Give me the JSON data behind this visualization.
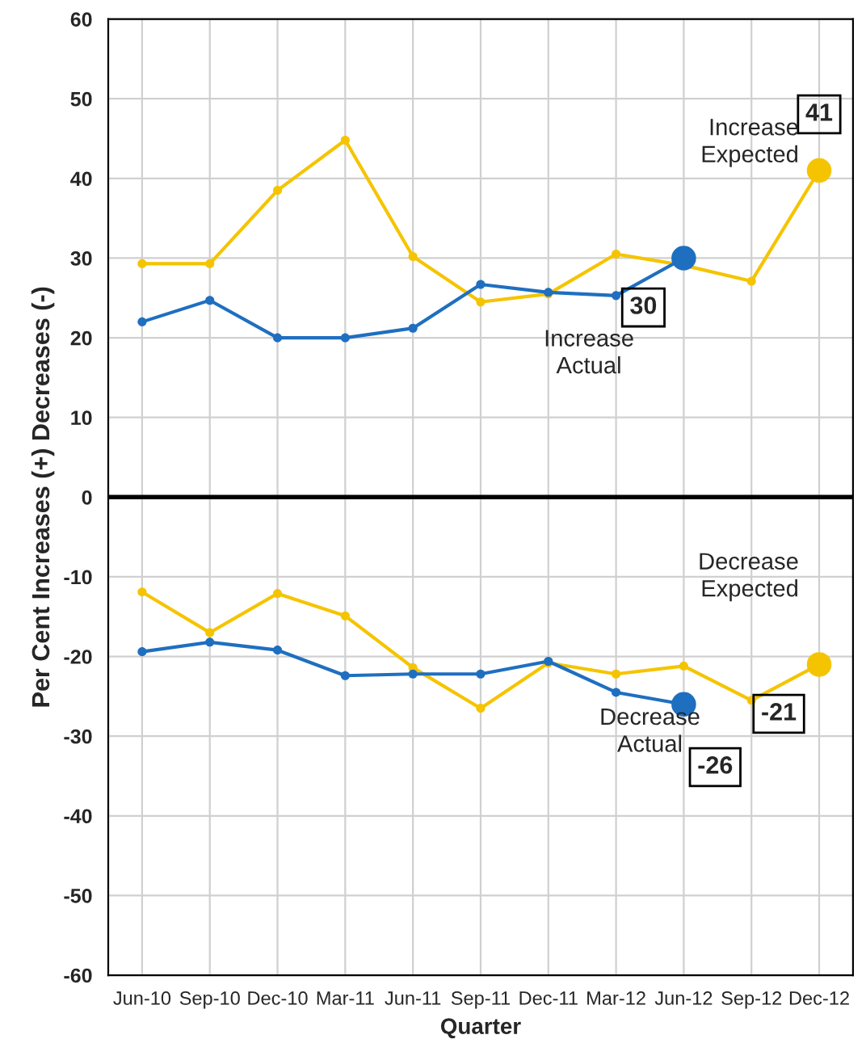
{
  "chart_data": {
    "type": "line",
    "xlabel": "Quarter",
    "ylabel": "Per Cent Increases (+) Decreases (-)",
    "categories": [
      "Jun-10",
      "Sep-10",
      "Dec-10",
      "Mar-11",
      "Jun-11",
      "Sep-11",
      "Dec-11",
      "Mar-12",
      "Jun-12",
      "Sep-12",
      "Dec-12"
    ],
    "series": [
      {
        "name": "Increase Expected",
        "color": "#f5c400",
        "values": [
          29.3,
          29.3,
          38.5,
          44.8,
          30.2,
          24.5,
          25.5,
          30.5,
          29.1,
          27.1,
          41
        ],
        "value_labels": [
          null,
          null,
          null,
          null,
          null,
          null,
          null,
          null,
          null,
          null,
          "41"
        ]
      },
      {
        "name": "Increase Actual",
        "color": "#1f6fc0",
        "values": [
          22,
          24.7,
          20,
          20,
          21.2,
          26.7,
          25.7,
          25.3,
          30,
          null,
          null
        ],
        "value_labels": [
          null,
          null,
          null,
          null,
          null,
          null,
          null,
          null,
          "30",
          null,
          null
        ]
      },
      {
        "name": "Decrease Expected",
        "color": "#f5c400",
        "values": [
          -11.9,
          -17,
          -12.1,
          -14.9,
          -21.4,
          -26.5,
          -20.8,
          -22.2,
          -21.2,
          -25.5,
          -21
        ],
        "value_labels": [
          null,
          null,
          null,
          null,
          null,
          null,
          null,
          null,
          null,
          null,
          "-21"
        ]
      },
      {
        "name": "Decrease Actual",
        "color": "#1f6fc0",
        "values": [
          -19.4,
          -18.2,
          -19.2,
          -22.4,
          -22.2,
          -22.2,
          -20.6,
          -24.5,
          -26,
          null,
          null
        ],
        "value_labels": [
          null,
          null,
          null,
          null,
          null,
          null,
          null,
          null,
          "-26",
          null,
          null
        ]
      }
    ],
    "ylim": [
      -60,
      60
    ],
    "yticks": [
      -60,
      -50,
      -40,
      -30,
      -20,
      -10,
      0,
      10,
      20,
      30,
      40,
      50,
      60
    ],
    "ref_lines": [
      {
        "axis": "y",
        "value": 0,
        "color": "#000000"
      }
    ],
    "grid": true,
    "marker": "circle",
    "line_style": "solid"
  }
}
